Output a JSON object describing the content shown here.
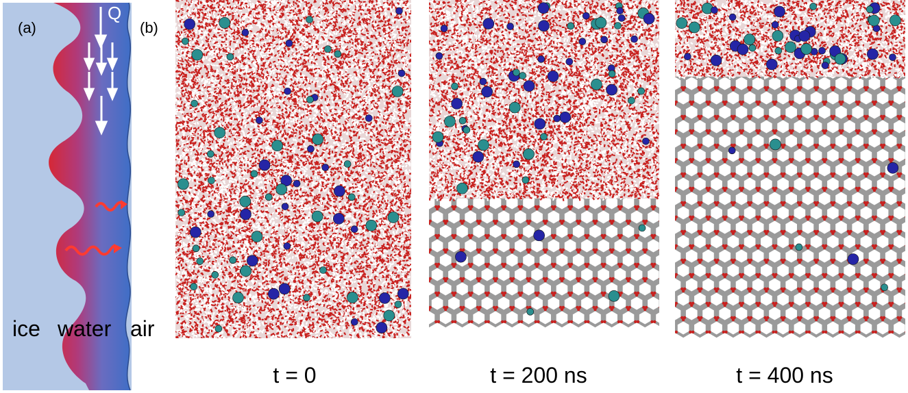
{
  "panel_a": {
    "label": "(a)",
    "heat_symbol": "Q",
    "regions": {
      "ice": "ice",
      "water": "water",
      "air": "air"
    },
    "colors": {
      "ice": "#b4c8e6",
      "water_top": "#3b6fc4",
      "melt_front": "#d62836",
      "arrows": "#ffffff",
      "ripples": "#ff3b30"
    }
  },
  "panel_b": {
    "label": "(b)",
    "snapshots": [
      {
        "time_label": "t = 0"
      },
      {
        "time_label": "t = 200 ns"
      },
      {
        "time_label": "t = 400 ns"
      }
    ],
    "colors": {
      "oxygen": "#c8201e",
      "hydrogen": "#ffffff",
      "bond": "#9a9a9a",
      "cation": "#2a8f8f",
      "anion": "#2525a6"
    }
  }
}
